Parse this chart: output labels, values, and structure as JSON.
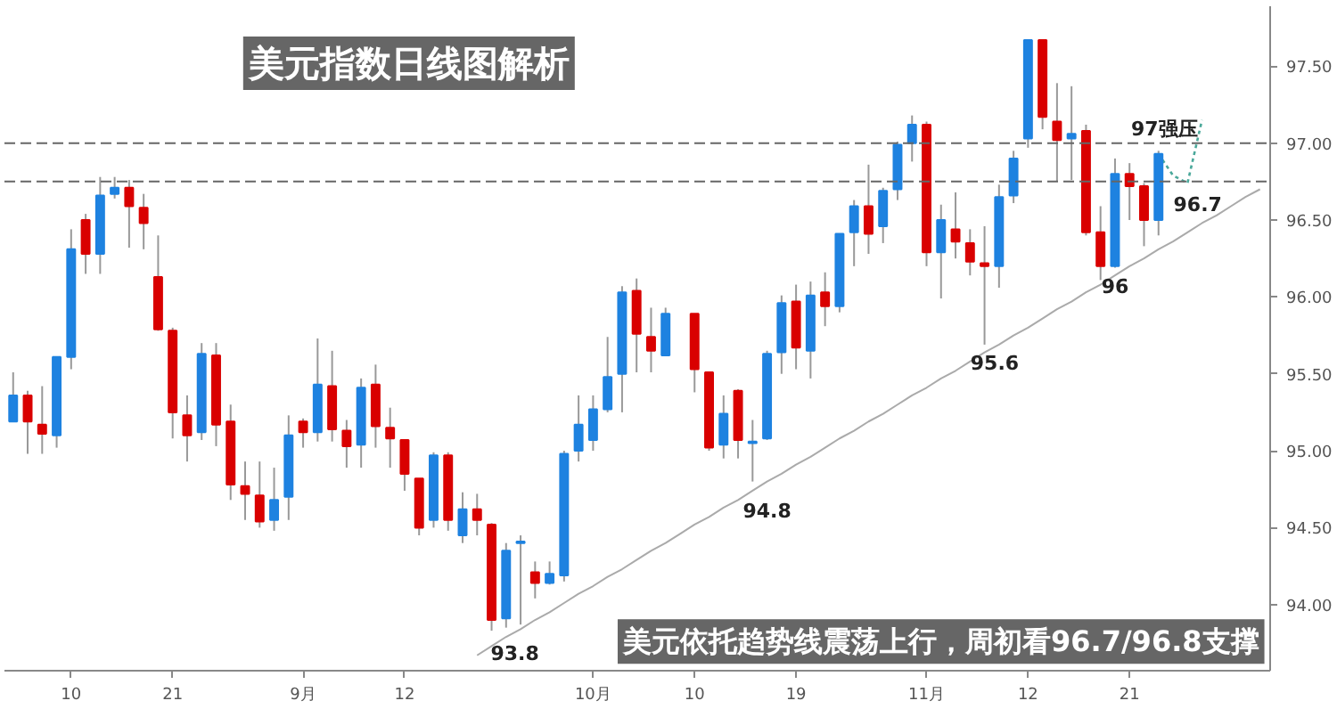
{
  "chart_data": {
    "type": "candlestick",
    "title": "美元指数日线图解析",
    "subtitle": "美元依托趋势线震荡上行，周初看96.7/96.8支撑",
    "categories": [
      null,
      null,
      null,
      null,
      "10",
      null,
      null,
      null,
      null,
      null,
      null,
      "21",
      null,
      null,
      null,
      null,
      null,
      null,
      null,
      null,
      "9月",
      null,
      null,
      null,
      null,
      null,
      null,
      "12",
      null,
      null,
      null,
      null,
      null,
      null,
      null,
      null,
      null,
      null,
      null,
      null,
      "10月",
      null,
      null,
      null,
      null,
      null,
      null,
      "10",
      null,
      null,
      null,
      null,
      null,
      null,
      "19",
      null,
      null,
      null,
      null,
      null,
      null,
      null,
      null,
      "11月",
      null,
      null,
      null,
      null,
      null,
      null,
      "12",
      null,
      null,
      null,
      null,
      null,
      null,
      "21",
      null,
      null,
      null,
      null,
      null,
      null,
      null,
      null,
      null
    ],
    "ohlc": [
      [
        95.19,
        95.51,
        95.19,
        95.36
      ],
      [
        95.36,
        95.39,
        94.98,
        95.19
      ],
      [
        95.17,
        95.42,
        94.98,
        95.11
      ],
      [
        95.1,
        95.61,
        95.02,
        95.61
      ],
      [
        95.61,
        96.44,
        95.53,
        96.31
      ],
      [
        96.5,
        96.54,
        96.15,
        96.28
      ],
      [
        96.28,
        96.78,
        96.15,
        96.66
      ],
      [
        96.67,
        96.78,
        96.64,
        96.71
      ],
      [
        96.71,
        96.76,
        96.32,
        96.59
      ],
      [
        96.58,
        96.67,
        96.31,
        96.48
      ],
      [
        96.13,
        96.4,
        95.78,
        95.79
      ],
      [
        95.78,
        95.8,
        95.08,
        95.25
      ],
      [
        95.23,
        95.36,
        94.93,
        95.1
      ],
      [
        95.12,
        95.7,
        95.07,
        95.63
      ],
      [
        95.62,
        95.7,
        95.03,
        95.17
      ],
      [
        95.19,
        95.3,
        94.68,
        94.78
      ],
      [
        94.77,
        94.93,
        94.55,
        94.72
      ],
      [
        94.71,
        94.93,
        94.5,
        94.54
      ],
      [
        94.55,
        94.89,
        94.48,
        94.68
      ],
      [
        94.7,
        95.23,
        94.55,
        95.1
      ],
      [
        95.19,
        95.21,
        95.02,
        95.12
      ],
      [
        95.12,
        95.73,
        95.06,
        95.43
      ],
      [
        95.42,
        95.65,
        95.06,
        95.14
      ],
      [
        95.13,
        95.2,
        94.89,
        95.03
      ],
      [
        95.04,
        95.47,
        94.89,
        95.41
      ],
      [
        95.43,
        95.56,
        95.02,
        95.16
      ],
      [
        95.15,
        95.28,
        94.89,
        95.08
      ],
      [
        95.07,
        95.07,
        94.74,
        94.85
      ],
      [
        94.82,
        94.82,
        94.45,
        94.5
      ],
      [
        94.55,
        94.99,
        94.5,
        94.97
      ],
      [
        94.97,
        94.99,
        94.48,
        94.55
      ],
      [
        94.45,
        94.73,
        94.4,
        94.62
      ],
      [
        94.62,
        94.72,
        94.45,
        94.55
      ],
      [
        94.52,
        94.53,
        93.83,
        93.9
      ],
      [
        93.91,
        94.4,
        93.85,
        94.35
      ],
      [
        94.4,
        94.45,
        93.87,
        94.41
      ],
      [
        94.21,
        94.28,
        94.04,
        94.14
      ],
      [
        94.14,
        94.28,
        94.13,
        94.2
      ],
      [
        94.19,
        95.0,
        94.15,
        94.98
      ],
      [
        95.0,
        95.36,
        94.93,
        95.17
      ],
      [
        95.07,
        95.36,
        95.0,
        95.27
      ],
      [
        95.27,
        95.74,
        95.25,
        95.48
      ],
      [
        95.5,
        96.07,
        95.25,
        96.03
      ],
      [
        96.04,
        96.12,
        95.51,
        95.76
      ],
      [
        95.74,
        95.93,
        95.51,
        95.65
      ],
      [
        95.62,
        95.93,
        95.62,
        95.89
      ],
      null,
      [
        95.89,
        95.89,
        95.38,
        95.53
      ],
      [
        95.51,
        95.51,
        95.0,
        95.02
      ],
      [
        95.04,
        95.36,
        94.95,
        95.24
      ],
      [
        95.39,
        95.4,
        94.95,
        95.07
      ],
      [
        95.05,
        95.2,
        94.8,
        95.06
      ],
      [
        95.08,
        95.65,
        95.07,
        95.63
      ],
      [
        95.64,
        96.01,
        95.5,
        95.96
      ],
      [
        95.97,
        96.08,
        95.53,
        95.67
      ],
      [
        95.65,
        96.1,
        95.47,
        96.01
      ],
      [
        96.03,
        96.16,
        95.81,
        95.94
      ],
      [
        95.94,
        96.41,
        95.9,
        96.41
      ],
      [
        96.42,
        96.63,
        96.2,
        96.59
      ],
      [
        96.59,
        96.86,
        96.28,
        96.41
      ],
      [
        96.46,
        96.71,
        96.35,
        96.69
      ],
      [
        96.7,
        97.01,
        96.63,
        96.99
      ],
      [
        97.0,
        97.18,
        96.88,
        97.12
      ],
      [
        97.12,
        97.14,
        96.2,
        96.29
      ],
      [
        96.29,
        96.6,
        95.99,
        96.5
      ],
      [
        96.44,
        96.68,
        96.25,
        96.36
      ],
      [
        96.35,
        96.44,
        96.14,
        96.23
      ],
      [
        96.22,
        96.46,
        95.69,
        96.2
      ],
      [
        96.2,
        96.73,
        96.06,
        96.65
      ],
      [
        96.66,
        96.95,
        96.61,
        96.9
      ],
      [
        97.03,
        97.67,
        96.97,
        97.67
      ],
      [
        97.67,
        97.67,
        97.09,
        97.17
      ],
      [
        97.14,
        97.39,
        96.75,
        97.02
      ],
      [
        97.03,
        97.37,
        96.76,
        97.06
      ],
      [
        97.08,
        97.12,
        96.4,
        96.42
      ],
      [
        96.42,
        96.59,
        96.11,
        96.2
      ],
      [
        96.2,
        96.9,
        96.19,
        96.8
      ],
      [
        96.8,
        96.87,
        96.5,
        96.72
      ],
      [
        96.72,
        96.74,
        96.33,
        96.5
      ],
      [
        96.5,
        96.95,
        96.4,
        96.93
      ],
      null,
      null,
      null,
      null,
      null,
      null,
      null
    ],
    "colors": [
      "#1e82e0",
      "#d90000",
      "#d90000",
      "#1e82e0",
      "#1e82e0",
      "#d90000",
      "#1e82e0",
      "#1e82e0",
      "#d90000",
      "#d90000",
      "#d90000",
      "#d90000",
      "#d90000",
      "#1e82e0",
      "#d90000",
      "#d90000",
      "#d90000",
      "#d90000",
      "#1e82e0",
      "#1e82e0",
      "#d90000",
      "#1e82e0",
      "#d90000",
      "#d90000",
      "#1e82e0",
      "#d90000",
      "#d90000",
      "#d90000",
      "#d90000",
      "#1e82e0",
      "#d90000",
      "#1e82e0",
      "#d90000",
      "#d90000",
      "#1e82e0",
      "#1e82e0",
      "#d90000",
      "#1e82e0",
      "#1e82e0",
      "#1e82e0",
      "#1e82e0",
      "#1e82e0",
      "#1e82e0",
      "#d90000",
      "#d90000",
      "#1e82e0",
      null,
      "#d90000",
      "#d90000",
      "#1e82e0",
      "#d90000",
      "#1e82e0",
      "#1e82e0",
      "#1e82e0",
      "#d90000",
      "#1e82e0",
      "#d90000",
      "#1e82e0",
      "#1e82e0",
      "#d90000",
      "#1e82e0",
      "#1e82e0",
      "#1e82e0",
      "#d90000",
      "#1e82e0",
      "#d90000",
      "#d90000",
      "#d90000",
      "#1e82e0",
      "#1e82e0",
      "#1e82e0",
      "#d90000",
      "#d90000",
      "#1e82e0",
      "#d90000",
      "#d90000",
      "#1e82e0",
      "#d90000",
      "#d90000",
      "#1e82e0",
      null,
      null,
      null,
      null,
      null,
      null,
      null
    ],
    "series": [
      {
        "type": "line",
        "color": "#aaaaaa",
        "line_style": "solid",
        "values": [
          null,
          null,
          null,
          null,
          null,
          null,
          null,
          null,
          null,
          null,
          null,
          null,
          null,
          null,
          null,
          null,
          null,
          null,
          null,
          null,
          null,
          null,
          null,
          null,
          null,
          null,
          null,
          null,
          null,
          null,
          null,
          null,
          93.67,
          93.73,
          93.79,
          93.84,
          93.9,
          93.95,
          94.01,
          94.07,
          94.12,
          94.18,
          94.23,
          94.29,
          94.35,
          94.4,
          94.46,
          94.52,
          94.57,
          94.63,
          94.68,
          94.74,
          94.8,
          94.85,
          94.91,
          94.96,
          95.02,
          95.08,
          95.13,
          95.19,
          95.24,
          95.3,
          95.36,
          95.41,
          95.47,
          95.52,
          95.58,
          95.64,
          95.69,
          95.75,
          95.8,
          95.86,
          95.92,
          95.97,
          96.03,
          96.08,
          96.14,
          96.2,
          96.25,
          96.31,
          96.36,
          96.42,
          96.48,
          96.53,
          96.59,
          96.65,
          96.7
        ]
      },
      {
        "type": "line",
        "color": "#4aa89a",
        "line_style": "dotted",
        "values": [
          null,
          null,
          null,
          null,
          null,
          null,
          null,
          null,
          null,
          null,
          null,
          null,
          null,
          null,
          null,
          null,
          null,
          null,
          null,
          null,
          null,
          null,
          null,
          null,
          null,
          null,
          null,
          null,
          null,
          null,
          null,
          null,
          null,
          null,
          null,
          null,
          null,
          null,
          null,
          null,
          null,
          null,
          null,
          null,
          null,
          null,
          null,
          null,
          null,
          null,
          null,
          null,
          null,
          null,
          null,
          null,
          null,
          null,
          null,
          null,
          null,
          null,
          null,
          null,
          null,
          null,
          null,
          null,
          null,
          null,
          null,
          null,
          null,
          null,
          null,
          null,
          null,
          null,
          null,
          96.93,
          96.79,
          96.74,
          97.15,
          null,
          null,
          null,
          null
        ]
      }
    ],
    "ref_lines": [
      {
        "axis": "y",
        "value": 97.0,
        "label": null,
        "color": "#666666",
        "line_style": "dashed"
      },
      {
        "axis": "y",
        "value": 96.75,
        "label": null,
        "color": "#666666",
        "line_style": "dashed"
      }
    ],
    "annotations": [
      "93.8",
      "94.8",
      "95.6",
      "96",
      "96.7",
      "97强压"
    ],
    "ylim": [
      93.57,
      97.89
    ],
    "yticks": [
      {
        "value": 94.0,
        "label": "94.00"
      },
      {
        "value": 94.5,
        "label": "94.50"
      },
      {
        "value": 95.0,
        "label": "95.00"
      },
      {
        "value": 95.5,
        "label": "95.50"
      },
      {
        "value": 96.0,
        "label": "96.00"
      },
      {
        "value": 96.5,
        "label": "96.50"
      },
      {
        "value": 97.0,
        "label": "97.00"
      },
      {
        "value": 97.5,
        "label": "97.50"
      }
    ],
    "grid": false
  }
}
